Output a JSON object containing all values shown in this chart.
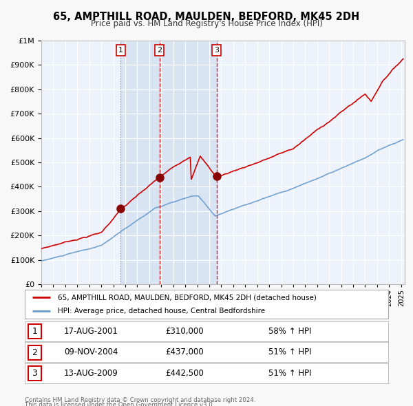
{
  "title": "65, AMPTHILL ROAD, MAULDEN, BEDFORD, MK45 2DH",
  "subtitle": "Price paid vs. HM Land Registry's House Price Index (HPI)",
  "legend_line1": "65, AMPTHILL ROAD, MAULDEN, BEDFORD, MK45 2DH (detached house)",
  "legend_line2": "HPI: Average price, detached house, Central Bedfordshire",
  "footer1": "Contains HM Land Registry data © Crown copyright and database right 2024.",
  "footer2": "This data is licensed under the Open Government Licence v3.0.",
  "transactions": [
    {
      "num": 1,
      "date": "17-AUG-2001",
      "price": 310000,
      "hpi_pct": "58% ↑ HPI",
      "x_year": 2001.62
    },
    {
      "num": 2,
      "date": "09-NOV-2004",
      "price": 437000,
      "hpi_pct": "51% ↑ HPI",
      "x_year": 2004.86
    },
    {
      "num": 3,
      "date": "13-AUG-2009",
      "price": 442500,
      "hpi_pct": "51% ↑ HPI",
      "x_year": 2009.62
    }
  ],
  "vline1_x": 2001.62,
  "vline2_x": 2004.86,
  "vline3_x": 2009.62,
  "red_line_color": "#cc0000",
  "blue_line_color": "#6699cc",
  "plot_bg_color": "#eef3fb",
  "ylim": [
    0,
    1000000
  ],
  "xlim_start": 1995.0,
  "xlim_end": 2025.3
}
